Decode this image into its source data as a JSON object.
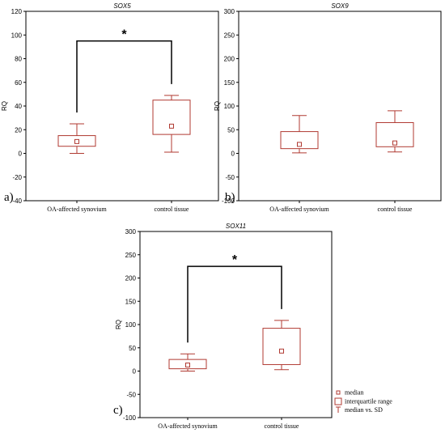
{
  "chart_data": [
    {
      "id": "sox5",
      "type": "box",
      "title": "SOX5",
      "ylabel": "RQ",
      "panel_label": "a)",
      "ylim": [
        -40,
        120
      ],
      "yticks": [
        -40,
        -20,
        0,
        20,
        40,
        60,
        80,
        100,
        120
      ],
      "categories": [
        "OA-affected synovium",
        "control tissue"
      ],
      "boxes": [
        {
          "median": 10,
          "q1": 6,
          "q3": 15,
          "lower": 0,
          "upper": 25
        },
        {
          "median": 23,
          "q1": 16,
          "q3": 45,
          "lower": 1,
          "upper": 49
        }
      ],
      "significance": {
        "label": "*",
        "level": 95
      }
    },
    {
      "id": "sox9",
      "type": "box",
      "title": "SOX9",
      "ylabel": "RQ",
      "panel_label": "b)",
      "ylim": [
        -100,
        300
      ],
      "yticks": [
        -100,
        -50,
        0,
        50,
        100,
        150,
        200,
        250,
        300
      ],
      "categories": [
        "OA-affected synovium",
        "control tissue"
      ],
      "boxes": [
        {
          "median": 19,
          "q1": 10,
          "q3": 46,
          "lower": 1,
          "upper": 80
        },
        {
          "median": 22,
          "q1": 14,
          "q3": 65,
          "lower": 3,
          "upper": 90
        }
      ]
    },
    {
      "id": "sox11",
      "type": "box",
      "title": "SOX11",
      "ylabel": "RQ",
      "panel_label": "c)",
      "ylim": [
        -100,
        300
      ],
      "yticks": [
        -100,
        -50,
        0,
        50,
        100,
        150,
        200,
        250,
        300
      ],
      "categories": [
        "OA-affected synovium",
        "control tissue"
      ],
      "boxes": [
        {
          "median": 13,
          "q1": 5,
          "q3": 25,
          "lower": 0,
          "upper": 37
        },
        {
          "median": 43,
          "q1": 14,
          "q3": 92,
          "lower": 3,
          "upper": 109
        }
      ],
      "significance": {
        "label": "*",
        "level": 225
      }
    }
  ],
  "legend": {
    "items": [
      "median",
      "interquartile range",
      "median vs. SD"
    ]
  },
  "colors": {
    "box": "#b03a32",
    "axis": "#000000"
  }
}
